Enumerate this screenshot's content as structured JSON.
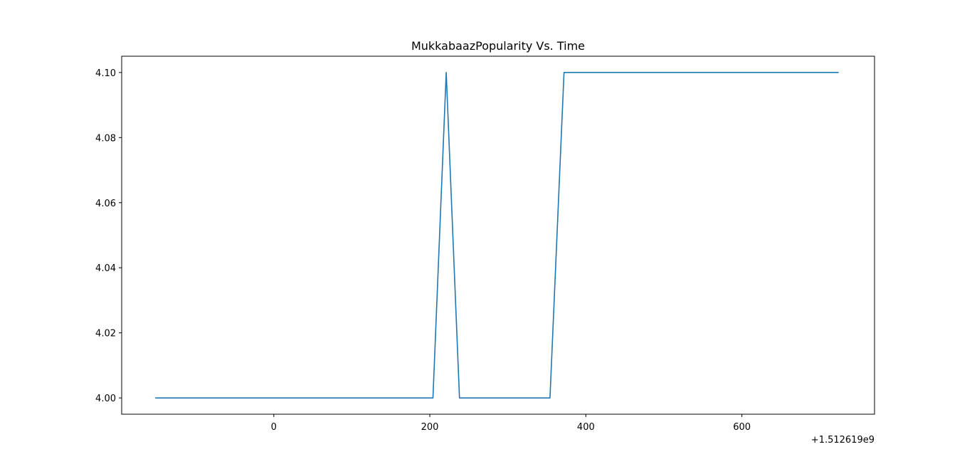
{
  "chart_data": {
    "type": "line",
    "title": "MukkabaazPopularity Vs. Time",
    "xlabel": "",
    "ylabel": "",
    "x_offset_label": "+1.512619e9",
    "x_offset": 1512619000,
    "xlim": [
      -195,
      770
    ],
    "ylim": [
      3.995,
      4.105
    ],
    "x_ticks": [
      0,
      200,
      400,
      600
    ],
    "x_tick_labels": [
      "0",
      "200",
      "400",
      "600"
    ],
    "y_ticks": [
      4.0,
      4.02,
      4.04,
      4.06,
      4.08,
      4.1
    ],
    "y_tick_labels": [
      "4.00",
      "4.02",
      "4.04",
      "4.06",
      "4.08",
      "4.10"
    ],
    "grid": false,
    "legend": "none",
    "series": [
      {
        "color": "#1f77b4",
        "x": [
          -152,
          204,
          221,
          238,
          354,
          372,
          724
        ],
        "y": [
          4.0,
          4.0,
          4.1,
          4.0,
          4.0,
          4.1,
          4.1
        ]
      }
    ]
  }
}
